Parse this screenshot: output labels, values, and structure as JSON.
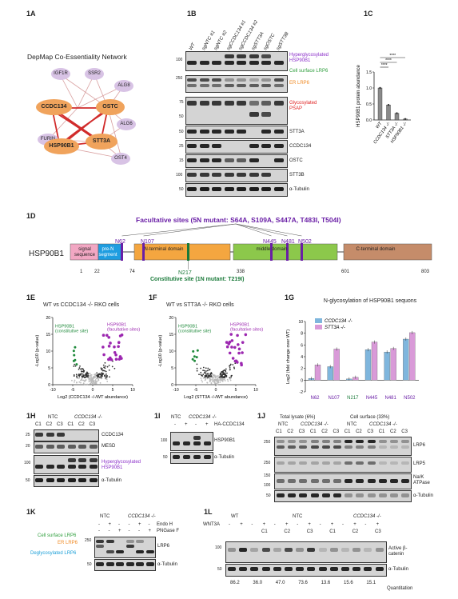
{
  "panels": {
    "a": "1A",
    "b": "1B",
    "c": "1C",
    "d": "1D",
    "e": "1E",
    "f": "1F",
    "g": "1G",
    "h": "1H",
    "i": "1I",
    "j": "1J",
    "k": "1K",
    "l": "1L"
  },
  "network": {
    "title": "DepMap Co-Essentiality Network",
    "nodes": [
      "IGF1R",
      "SSR2",
      "ALG8",
      "CCDC134",
      "OSTC",
      "ALG6",
      "FURIN",
      "HSP90B1",
      "STT3A",
      "OST4"
    ]
  },
  "blot1b": {
    "lanes": [
      "WT",
      "sgNTC #1",
      "sgNTC #2",
      "sgCCDC134 #1",
      "sgCCDC134 #2",
      "sgSTT3A",
      "sgOSTC",
      "sgSTT3B"
    ],
    "labels": [
      "Hyperglycosylated HSP90B1",
      "Cell surface LRP6",
      "ER LRP6",
      "Glycosylated PSAP",
      "STT3A",
      "CCDC134",
      "OSTC",
      "STT3B",
      "α-Tubulin"
    ],
    "markers": [
      "100",
      "250",
      "75",
      "50",
      "50",
      "25",
      "15",
      "100",
      "50"
    ],
    "colors": {
      "purple": "#8b2fc9",
      "green": "#2e9e3c",
      "orange": "#f08a24",
      "red": "#e02424"
    }
  },
  "chart_data": [
    {
      "type": "bar",
      "panel": "1C",
      "categories": [
        "WT",
        "CCDC134 -/-",
        "STT3A -/-",
        "HSP90B1 -/-"
      ],
      "values": [
        1.0,
        0.47,
        0.21,
        0.03
      ],
      "ylabel": "HSP90B1 protein abundance",
      "ylim": [
        0,
        1.5
      ],
      "yticks": [
        "0.0",
        "0.5",
        "1.0",
        "1.5"
      ],
      "significance": "****"
    },
    {
      "type": "scatter",
      "panel": "1E",
      "title": "WT vs CCDC134 -/- RKO cells",
      "xlabel": "Log2 (CCDC134 -/-/WT abundance)",
      "ylabel": "-Log10 (p-value)",
      "xlim": [
        -10,
        10
      ],
      "ylim": [
        0,
        20
      ],
      "xticks": [
        "-10",
        "-5",
        "0",
        "5",
        "10"
      ],
      "yticks": [
        "0",
        "5",
        "10",
        "15",
        "20"
      ],
      "annotations": [
        "HSP90B1 (constitutive site)",
        "HSP90B1 (facultative sites)"
      ]
    },
    {
      "type": "scatter",
      "panel": "1F",
      "title": "WT vs STT3A -/- RKO cells",
      "xlabel": "Log2 (STT3A -/-/WT abundance)",
      "ylabel": "-Log10 (p-value)",
      "xlim": [
        -10,
        10
      ],
      "ylim": [
        0,
        20
      ],
      "xticks": [
        "-10",
        "-5",
        "0",
        "5",
        "10"
      ],
      "yticks": [
        "0",
        "5",
        "10",
        "15",
        "20"
      ],
      "annotations": [
        "HSP90B1 (constitutive site)",
        "HSP90B1 (facultative sites)"
      ]
    },
    {
      "type": "bar",
      "panel": "1G",
      "title": "N-glycosylation of HSP90B1 sequons",
      "categories": [
        "N62",
        "N107",
        "N217",
        "N445",
        "N481",
        "N502"
      ],
      "series": [
        {
          "name": "CCDC134 -/-",
          "values": [
            0.3,
            2.3,
            0.2,
            5.2,
            4.8,
            7.0
          ]
        },
        {
          "name": "STT3A -/-",
          "values": [
            2.6,
            5.3,
            0.5,
            6.5,
            5.4,
            8.1
          ]
        }
      ],
      "ylabel": "Log2 (fold change over WT)",
      "ylim": [
        -2,
        10
      ],
      "yticks": [
        "-2",
        "0",
        "2",
        "4",
        "6",
        "8",
        "10"
      ]
    }
  ],
  "domain": {
    "gene": "HSP90B1",
    "facultative": "Facultative sites (5N mutant: S64A, S109A, S447A, T483I, T504I)",
    "constitutive": "Constitutive site (1N mutant: T219I)",
    "segments": [
      "signal sequence",
      "pre-N segment",
      "N-terminal domain",
      "middle domain",
      "C-terminal domain"
    ],
    "sites": [
      "N62",
      "N107",
      "N217",
      "N445",
      "N481",
      "N502"
    ],
    "positions": [
      "1",
      "22",
      "74",
      "338",
      "601",
      "803"
    ]
  },
  "blot1h": {
    "groups": [
      "NTC",
      "CCDC134 -/-"
    ],
    "lanes": [
      "C1",
      "C2",
      "C3",
      "C1",
      "C2",
      "C3"
    ],
    "labels": [
      "CCDC134",
      "MESD",
      "Hyperglycosylated HSP90B1",
      "α-Tubulin"
    ],
    "markers": [
      "25",
      "20",
      "100",
      "50"
    ]
  },
  "blot1i": {
    "groups": [
      "NTC",
      "CCDC134 -/-"
    ],
    "rowlabel": "HA-CCDC134",
    "signs": [
      "-",
      "+",
      "-",
      "+"
    ],
    "labels": [
      "HSP90B1",
      "α-Tubulin"
    ],
    "markers": [
      "100",
      "50"
    ]
  },
  "blot1j": {
    "headers": [
      "Total lysate (6%)",
      "Cell surface (33%)"
    ],
    "groups": [
      "NTC",
      "CCDC134 -/-"
    ],
    "lanes": [
      "C1",
      "C2",
      "C3",
      "C1",
      "C2",
      "C3"
    ],
    "labels": [
      "LRP6",
      "LRP5",
      "Na/K ATPase",
      "α-Tubulin"
    ],
    "markers": [
      "250",
      "250",
      "150",
      "100",
      "50"
    ]
  },
  "blot1k": {
    "groups": [
      "NTC",
      "CCDC134 -/-"
    ],
    "rows": [
      "Endo H",
      "PNGase F"
    ],
    "endo": [
      "-",
      "+",
      "-",
      "-",
      "+",
      "-"
    ],
    "png": [
      "-",
      "-",
      "+",
      "-",
      "-",
      "+"
    ],
    "sidelabels": [
      "Cell surface LRP6",
      "ER LRP6",
      "Deglycosylated LRP6"
    ],
    "labels": [
      "LRP6",
      "α-Tubulin"
    ],
    "markers": [
      "250",
      "50"
    ]
  },
  "blot1l": {
    "groups": [
      "WT",
      "NTC",
      "CCDC134 -/-"
    ],
    "rowlabel": "WNT3A",
    "signs": [
      "-",
      "+",
      "-",
      "+",
      "-",
      "+",
      "-",
      "+",
      "-",
      "+",
      "-",
      "+",
      "-",
      "+"
    ],
    "clones": [
      "C1",
      "C2",
      "C3",
      "C1",
      "C2",
      "C3"
    ],
    "labels": [
      "Active β-catenin",
      "α-Tubulin"
    ],
    "markers": [
      "100",
      "50"
    ],
    "quant": [
      "86.2",
      "36.0",
      "47.0",
      "73.6",
      "13.6",
      "15.6",
      "15.1"
    ],
    "quant_label": "Quantitation"
  }
}
